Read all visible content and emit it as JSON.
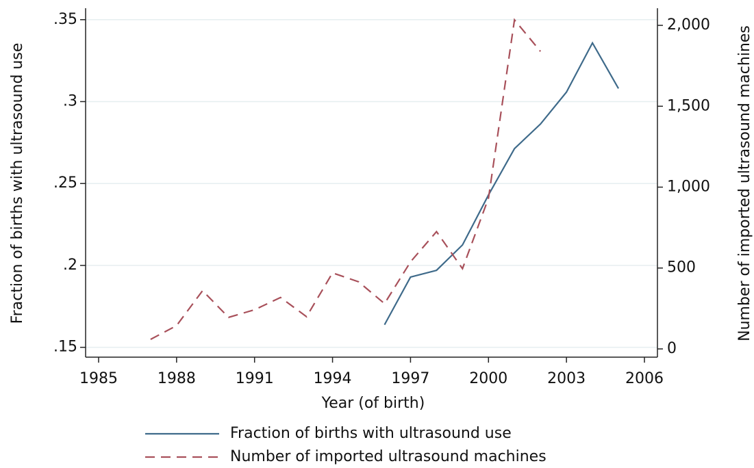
{
  "chart_data": {
    "type": "line",
    "x": [
      1987,
      1988,
      1989,
      1990,
      1991,
      1992,
      1993,
      1994,
      1995,
      1996,
      1997,
      1998,
      1999,
      2000,
      2001,
      2002,
      2003,
      2004,
      2005
    ],
    "series": [
      {
        "name": "Fraction of births with ultrasound use",
        "color": "#3e6a8a",
        "linestyle": "solid",
        "values": [
          null,
          null,
          null,
          null,
          null,
          null,
          null,
          null,
          null,
          0.1638,
          0.1929,
          0.197,
          0.2125,
          0.243,
          0.2713,
          0.2863,
          0.3058,
          0.3358,
          0.308
        ]
      },
      {
        "name": "Number of imported ultrasound machines",
        "color": "#a8505a",
        "linestyle": "dashed",
        "axis": "y2",
        "values": [
          59,
          144,
          360,
          195,
          242,
          318,
          199,
          470,
          415,
          280,
          538,
          725,
          496,
          932,
          2034,
          1839,
          null,
          null,
          null
        ]
      }
    ],
    "xlabel": "Year (of birth)",
    "ylabel": "Fraction of births with ultrasound use",
    "y2label": "Number of imported ultrasound machines",
    "xlim": [
      1984.5,
      2006.5
    ],
    "xticks": [
      1985,
      1988,
      1991,
      1994,
      1997,
      2000,
      2003,
      2006
    ],
    "ylim": [
      0.144,
      0.357
    ],
    "yticks": [
      {
        "value": 0.15,
        "label": ".15"
      },
      {
        "value": 0.2,
        "label": ".2"
      },
      {
        "value": 0.25,
        "label": ".25"
      },
      {
        "value": 0.3,
        "label": ".3"
      },
      {
        "value": 0.35,
        "label": ".35"
      }
    ],
    "y2lim": [
      -51,
      2106
    ],
    "y2ticks": [
      0,
      {
        "value": 500,
        "label": "500"
      },
      {
        "value": 1000,
        "label": "1,000"
      },
      {
        "value": 1500,
        "label": "1,500"
      },
      {
        "value": 2000,
        "label": "2,000"
      }
    ],
    "grid": true
  }
}
